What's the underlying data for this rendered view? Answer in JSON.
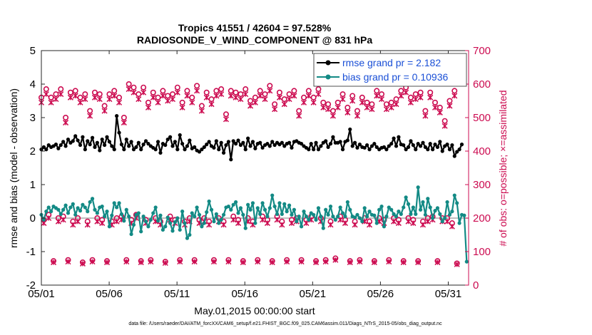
{
  "chart_data": {
    "type": "line",
    "title_line1": "Tropics 41551 / 42604 = 97.528%",
    "title_line2": "RADIOSONDE_V_WIND_COMPONENT @ 831 hPa",
    "xlabel": "May.01,2015 00:00:00 start",
    "ylabel": "rmse and bias (model - observation)",
    "ylabel_right": "# of obs: o=possible; ×=assimilated",
    "footnote": "data file: /Users/raeder/DAI/ATM_forcXX/CAM6_setup/f.e21.FHIST_BGC.f09_025.CAM6assim.011/Diags_NTrS_2015-05/obs_diag_output.nc",
    "xlim": [
      0,
      31.5
    ],
    "ylim": [
      -2,
      5
    ],
    "ylim_right": [
      0,
      700
    ],
    "x_ticks": [
      0,
      5,
      10,
      15,
      20,
      25,
      30
    ],
    "x_tick_labels": [
      "05/01",
      "05/06",
      "05/11",
      "05/16",
      "05/21",
      "05/26",
      "05/31"
    ],
    "y_ticks": [
      -2,
      -1,
      0,
      1,
      2,
      3,
      4,
      5
    ],
    "y_tick_labels": [
      "-2",
      "-1",
      "0",
      "1",
      "2",
      "3",
      "4",
      "5"
    ],
    "y_ticks_right": [
      0,
      100,
      200,
      300,
      400,
      500,
      600,
      700
    ],
    "y_tick_labels_right": [
      "0",
      "100",
      "200",
      "300",
      "400",
      "500",
      "600",
      "700"
    ],
    "legend": [
      "rmse grand pr = 2.182",
      "bias grand pr = 0.10936"
    ],
    "colors": {
      "rmse": "#000000",
      "bias": "#138a85",
      "obs": "#cc0b50",
      "zero_line": "#9a9a9a"
    },
    "series": [
      {
        "name": "rmse grand pr = 2.182",
        "values": [
          2.05,
          2.12,
          2.05,
          2.18,
          2.12,
          2.15,
          2.2,
          2.08,
          2.18,
          2.28,
          2.15,
          2.35,
          2.25,
          2.3,
          2.45,
          2.32,
          2.18,
          2.42,
          2.05,
          2.3,
          2.2,
          2.4,
          2.12,
          2.25,
          2.02,
          2.35,
          2.18,
          2.42,
          2.28,
          2.15,
          2.05,
          3.05,
          2.55,
          2.2,
          2.05,
          2.35,
          2.15,
          2.28,
          2.05,
          2.12,
          2.25,
          2.05,
          2.2,
          2.3,
          2.22,
          2.15,
          2.1,
          2.05,
          2.28,
          1.95,
          2.22,
          2.18,
          2.35,
          2.42,
          2.15,
          2.28,
          2.05,
          2.48,
          2.22,
          2.05,
          2.15,
          2.32,
          2.08,
          2.12,
          2.02,
          1.98,
          2.05,
          2.12,
          2.2,
          2.28,
          2.15,
          2.1,
          2.3,
          2.05,
          2.25,
          1.95,
          2.18,
          2.28,
          1.75,
          2.3,
          2.22,
          2.32,
          2.18,
          2.25,
          2.05,
          2.38,
          2.15,
          2.28,
          2.08,
          2.22,
          2.25,
          2.1,
          2.18,
          2.22,
          2.15,
          2.28,
          2.18,
          2.25,
          2.2,
          2.25,
          2.15,
          2.22,
          2.25,
          2.1,
          2.28,
          2.3,
          2.25,
          2.22,
          2.15,
          2.1,
          2.05,
          2.22,
          2.05,
          2.25,
          2.05,
          2.15,
          2.25,
          2.3,
          2.12,
          2.22,
          2.42,
          2.25,
          2.25,
          2.28,
          2.05,
          2.28,
          2.32,
          2.65,
          2.15,
          2.25,
          2.1,
          2.2,
          2.12,
          2.1,
          2.18,
          2.05,
          2.15,
          2.22,
          2.12,
          2.05,
          2.1,
          2.12,
          2.05,
          2.15,
          2.22,
          2.38,
          2.15,
          2.42,
          2.2,
          2.18,
          2.05,
          2.12,
          2.3,
          2.18,
          2.05,
          2.22,
          2.15,
          2.25,
          2.12,
          2.05,
          2.22,
          2.05,
          2.2,
          2.12,
          2.28,
          2.0,
          2.15,
          2.2,
          2.05,
          2.18,
          1.85,
          1.98,
          2.05,
          2.2
        ]
      },
      {
        "name": "bias grand pr = 0.10936",
        "values": [
          0.1,
          -0.05,
          0.2,
          0.32,
          0.2,
          0.35,
          0.3,
          0.25,
          0.12,
          0.25,
          0.38,
          0.15,
          0.32,
          0.42,
          0.1,
          0.3,
          0.22,
          0.4,
          0.32,
          0.2,
          0.48,
          0.58,
          0.25,
          0.15,
          0.32,
          0.35,
          0.05,
          0.2,
          -0.25,
          0.08,
          0.45,
          0.32,
          0.45,
          0.12,
          -0.08,
          0.25,
          0.05,
          -0.48,
          -0.2,
          0.1,
          0.15,
          -0.4,
          0.05,
          -0.1,
          -0.25,
          -0.05,
          0.15,
          0.32,
          -0.08,
          0.08,
          -0.35,
          -0.25,
          0.02,
          -0.15,
          -0.38,
          -0.12,
          0.0,
          -0.35,
          0.2,
          -0.15,
          -0.6,
          -0.5,
          0.15,
          0.05,
          0.32,
          0.1,
          -0.25,
          -0.15,
          0.18,
          0.5,
          0.25,
          -0.1,
          0.12,
          -0.15,
          -0.05,
          0.1,
          0.32,
          0.35,
          0.25,
          0.4,
          0.48,
          0.15,
          0.3,
          0.1,
          -0.3,
          0.4,
          0.25,
          0.45,
          -0.15,
          0.3,
          0.12,
          0.45,
          0.25,
          0.05,
          0.3,
          0.68,
          0.35,
          0.12,
          0.45,
          0.12,
          0.42,
          0.2,
          0.38,
          0.1,
          0.25,
          -0.1,
          0.05,
          -0.25,
          0.2,
          0.05,
          -0.05,
          0.15,
          0.1,
          -0.05,
          0.3,
          0.05,
          -0.3,
          0.25,
          0.1,
          0.35,
          0.05,
          -0.05,
          0.05,
          0.32,
          0.15,
          0.05,
          0.48,
          0.25,
          0.05,
          0.02,
          0.1,
          0.0,
          -0.1,
          0.3,
          0.05,
          0.2,
          0.1,
          0.08,
          -0.15,
          0.25,
          0.35,
          -0.25,
          0.05,
          0.32,
          0.25,
          0.12,
          0.05,
          0.2,
          0.12,
          0.32,
          0.62,
          0.42,
          0.12,
          0.32,
          0.12,
          0.92,
          0.25,
          0.48,
          0.1,
          0.58,
          0.32,
          0.0,
          0.22,
          0.3,
          0.12,
          -0.1,
          0.0,
          0.48,
          0.1,
          0.2,
          0.68,
          0.45,
          -0.15,
          0.1,
          0.08,
          -1.3
        ]
      },
      {
        "name": "obs possible",
        "values": [
          560,
          195,
          585,
          210,
          560,
          72,
          570,
          200,
          585,
          205,
          500,
          75,
          575,
          190,
          580,
          200,
          560,
          68,
          570,
          190,
          520,
          75,
          575,
          200,
          570,
          195,
          535,
          72,
          570,
          190,
          580,
          200,
          560,
          205,
          500,
          75,
          600,
          195,
          590,
          210,
          570,
          72,
          590,
          195,
          545,
          75,
          575,
          200,
          560,
          190,
          580,
          70,
          565,
          205,
          570,
          195,
          590,
          75,
          545,
          190,
          580,
          200,
          560,
          75,
          595,
          195,
          535,
          200,
          575,
          190,
          555,
          75,
          580,
          200,
          585,
          190,
          510,
          75,
          580,
          205,
          575,
          195,
          570,
          72,
          585,
          200,
          550,
          190,
          560,
          75,
          580,
          205,
          570,
          195,
          595,
          72,
          540,
          205,
          575,
          190,
          555,
          75,
          570,
          195,
          580,
          200,
          520,
          75,
          560,
          195,
          580,
          205,
          560,
          72,
          585,
          200,
          545,
          75,
          540,
          190,
          520,
          80,
          545,
          205,
          570,
          195,
          530,
          72,
          565,
          190,
          520,
          75,
          560,
          200,
          545,
          190,
          540,
          72,
          580,
          200,
          570,
          195,
          540,
          75,
          545,
          200,
          555,
          195,
          580,
          72,
          590,
          200,
          560,
          195,
          570,
          72,
          575,
          190,
          520,
          200,
          575,
          205,
          545,
          72,
          530,
          200,
          490,
          200,
          550,
          185,
          580,
          65
        ]
      },
      {
        "name": "obs assimilated",
        "values": [
          545,
          185,
          570,
          200,
          545,
          68,
          555,
          190,
          570,
          195,
          485,
          70,
          560,
          180,
          565,
          190,
          545,
          64,
          555,
          180,
          505,
          70,
          560,
          190,
          555,
          185,
          520,
          68,
          555,
          180,
          565,
          190,
          545,
          195,
          485,
          70,
          585,
          185,
          575,
          200,
          555,
          68,
          575,
          185,
          530,
          70,
          560,
          190,
          545,
          180,
          565,
          66,
          550,
          195,
          555,
          185,
          575,
          70,
          530,
          180,
          565,
          190,
          545,
          70,
          580,
          185,
          520,
          190,
          560,
          180,
          540,
          70,
          565,
          190,
          570,
          180,
          495,
          70,
          565,
          195,
          560,
          185,
          555,
          68,
          570,
          190,
          535,
          180,
          545,
          70,
          565,
          195,
          555,
          185,
          580,
          68,
          525,
          195,
          560,
          180,
          540,
          70,
          555,
          185,
          565,
          190,
          505,
          70,
          545,
          185,
          565,
          195,
          545,
          68,
          570,
          190,
          530,
          70,
          525,
          180,
          505,
          75,
          530,
          195,
          555,
          185,
          515,
          68,
          550,
          180,
          505,
          70,
          545,
          190,
          530,
          180,
          525,
          68,
          565,
          190,
          555,
          185,
          525,
          70,
          530,
          190,
          540,
          185,
          565,
          68,
          575,
          190,
          545,
          185,
          555,
          68,
          560,
          180,
          505,
          190,
          560,
          195,
          530,
          68,
          515,
          190,
          475,
          190,
          535,
          175,
          565,
          62
        ]
      }
    ]
  }
}
